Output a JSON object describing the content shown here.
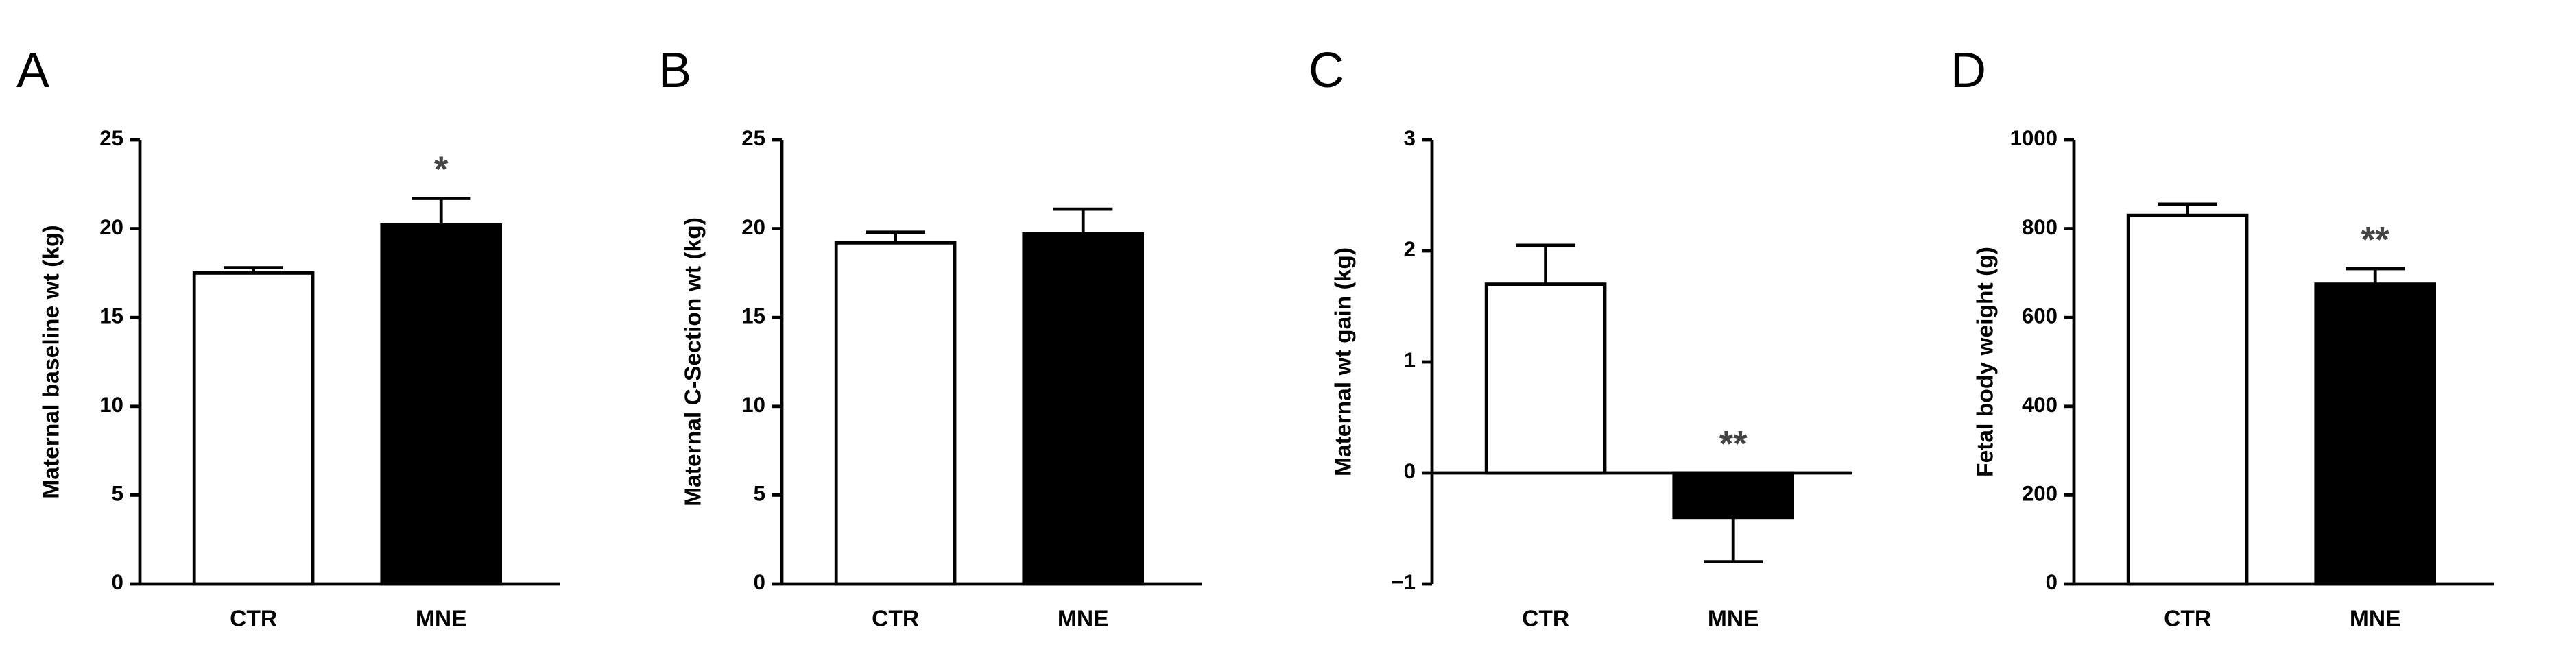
{
  "chart_data": [
    {
      "type": "bar",
      "panel": "A",
      "ylabel": "Maternal baseline wt (kg)",
      "categories": [
        "CTR",
        "MNE"
      ],
      "values": [
        17.5,
        20.2
      ],
      "errors": [
        0.3,
        1.5
      ],
      "colors": [
        "#ffffff",
        "#000000"
      ],
      "ylim": [
        0,
        25
      ],
      "yticks": [
        0,
        5,
        10,
        15,
        20,
        25
      ],
      "annotations": [
        {
          "text": "*",
          "category": "MNE"
        }
      ]
    },
    {
      "type": "bar",
      "panel": "B",
      "ylabel": "Maternal C-Section wt (kg)",
      "categories": [
        "CTR",
        "MNE"
      ],
      "values": [
        19.2,
        19.7
      ],
      "errors": [
        0.6,
        1.4
      ],
      "colors": [
        "#ffffff",
        "#000000"
      ],
      "ylim": [
        0,
        25
      ],
      "yticks": [
        0,
        5,
        10,
        15,
        20,
        25
      ]
    },
    {
      "type": "bar",
      "panel": "C",
      "ylabel": "Maternal wt gain (kg)",
      "categories": [
        "CTR",
        "MNE"
      ],
      "values": [
        1.7,
        -0.4
      ],
      "errors": [
        0.35,
        0.4
      ],
      "colors": [
        "#ffffff",
        "#000000"
      ],
      "ylim": [
        -1,
        3
      ],
      "yticks": [
        {
          "value": -1,
          "label": "−1"
        },
        0,
        1,
        2,
        3
      ],
      "annotations": [
        {
          "text": "**",
          "category": "MNE"
        }
      ]
    },
    {
      "type": "bar",
      "panel": "D",
      "ylabel": "Fetal body weight (g)",
      "categories": [
        "CTR",
        "MNE"
      ],
      "values": [
        830,
        675
      ],
      "errors": [
        25,
        35
      ],
      "colors": [
        "#ffffff",
        "#000000"
      ],
      "ylim": [
        0,
        1000
      ],
      "yticks": [
        0,
        200,
        400,
        600,
        800,
        1000
      ],
      "annotations": [
        {
          "text": "**",
          "category": "MNE"
        }
      ]
    }
  ]
}
